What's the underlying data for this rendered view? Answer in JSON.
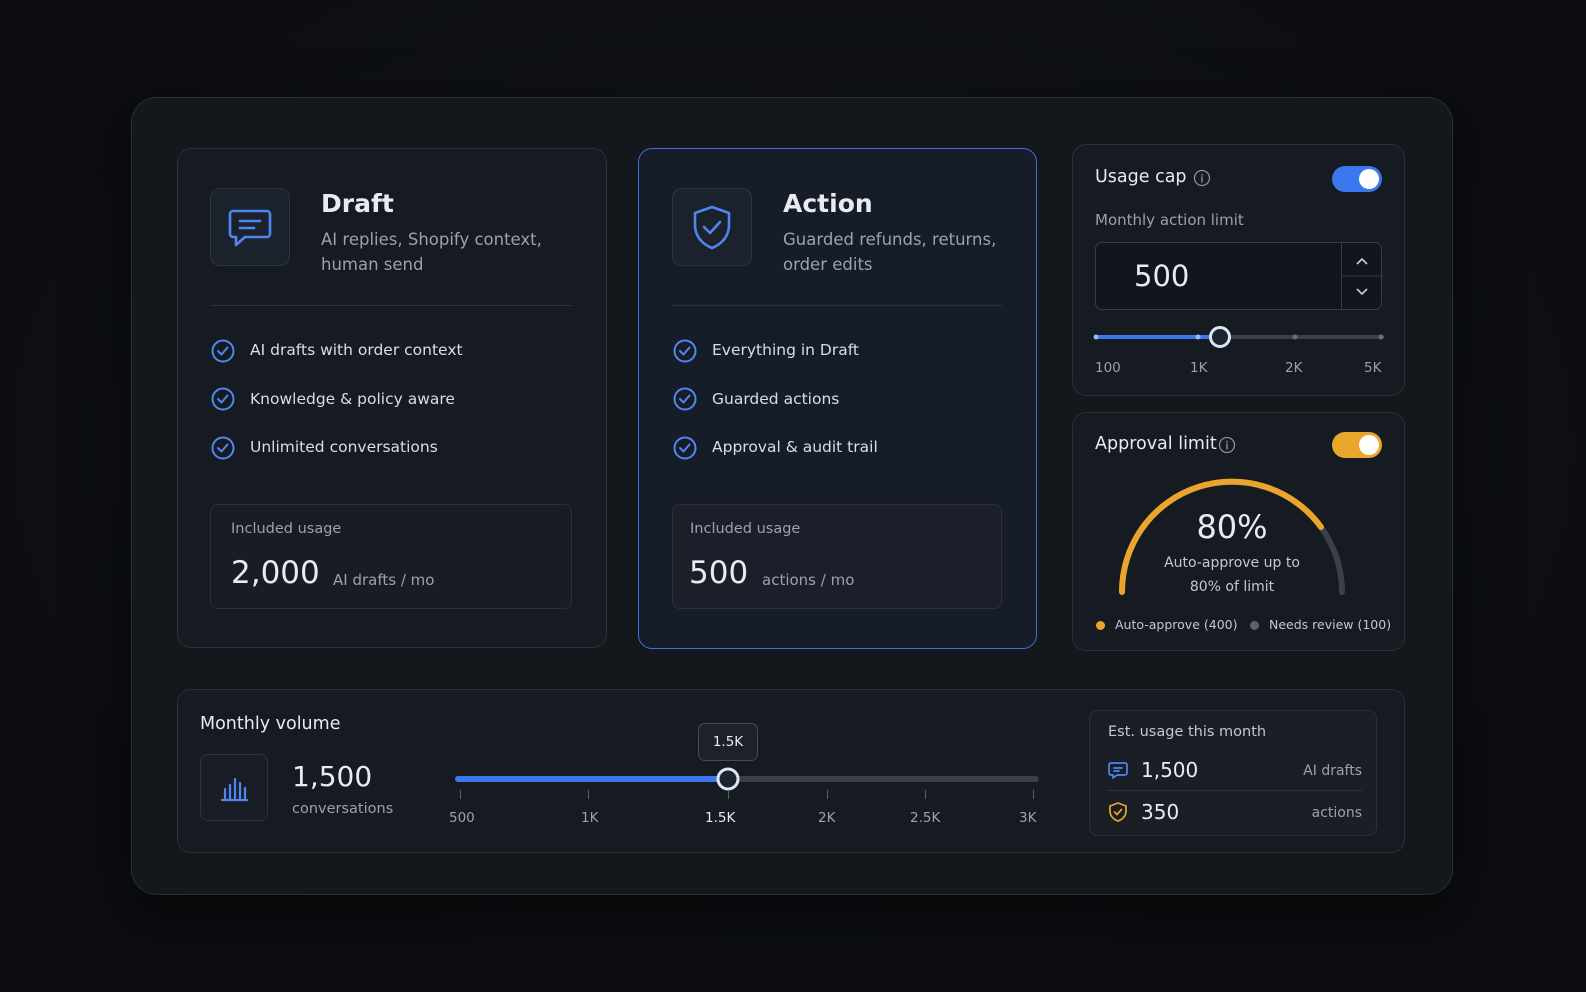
{
  "plans": [
    {
      "name": "Draft",
      "description": "AI replies, Shopify context, human send",
      "features": [
        "AI drafts with order context",
        "Knowledge & policy aware",
        "Unlimited conversations"
      ],
      "usage_label": "Included usage",
      "usage_value": "2,000",
      "usage_unit": "AI drafts / mo"
    },
    {
      "name": "Action",
      "description": "Guarded refunds, returns, order edits",
      "features": [
        "Everything in Draft",
        "Guarded actions",
        "Approval & audit trail"
      ],
      "usage_label": "Included usage",
      "usage_value": "500",
      "usage_unit": "actions / mo"
    }
  ],
  "usage_cap": {
    "title": "Usage cap",
    "field_label": "Monthly action limit",
    "value": "500",
    "scale": [
      "100",
      "1K",
      "2K",
      "5K"
    ]
  },
  "approval_limit": {
    "title": "Approval limit",
    "percent": "80%",
    "caption": "Auto-approve up to 80% of limit",
    "legend": [
      "Auto-approve (400)",
      "Needs review (100)"
    ]
  },
  "monthly_volume": {
    "title": "Monthly volume",
    "value": "1,500",
    "unit": "conversations",
    "tooltip": "1.5K",
    "scale": [
      "500",
      "1K",
      "1.5K",
      "2K",
      "2.5K",
      "3K"
    ]
  },
  "estimate": {
    "title": "Est. usage this month",
    "rows": [
      {
        "value": "1,500",
        "label": "AI drafts"
      },
      {
        "value": "350",
        "label": "actions"
      }
    ]
  }
}
